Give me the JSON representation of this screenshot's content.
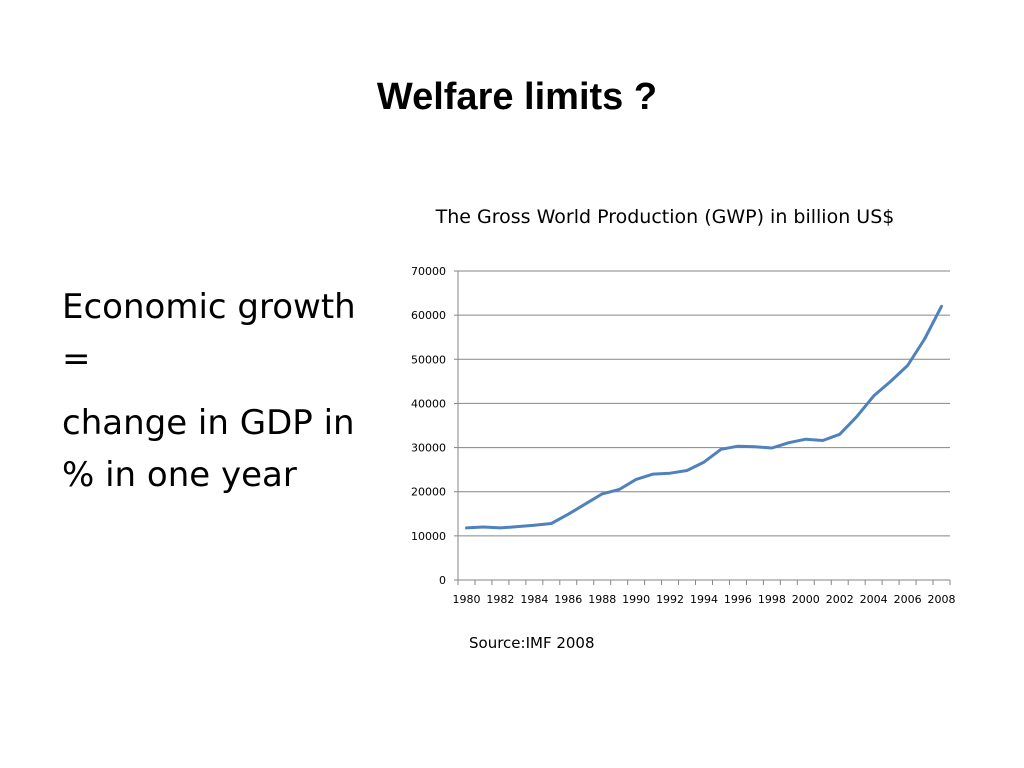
{
  "slide": {
    "title": "Welfare limits ?",
    "body": [
      "Economic growth =",
      "change in GDP in % in one year"
    ]
  },
  "chart_data": {
    "type": "line",
    "title": "The Gross World Production (GWP) in billion US$",
    "source": "Source:IMF 2008",
    "x": [
      1980,
      1981,
      1982,
      1983,
      1984,
      1985,
      1986,
      1987,
      1988,
      1989,
      1990,
      1991,
      1992,
      1993,
      1994,
      1995,
      1996,
      1997,
      1998,
      1999,
      2000,
      2001,
      2002,
      2003,
      2004,
      2005,
      2006,
      2007,
      2008
    ],
    "series": [
      {
        "values": [
          11800,
          12000,
          11800,
          12100,
          12400,
          12800,
          14900,
          17200,
          19500,
          20500,
          22800,
          24000,
          24200,
          24800,
          26700,
          29600,
          30300,
          30200,
          29900,
          31100,
          31900,
          31600,
          33000,
          37000,
          41700,
          45000,
          48600,
          54600,
          62000
        ],
        "color": "#4f81bd"
      }
    ],
    "xticks": [
      "1980",
      "1982",
      "1984",
      "1986",
      "1988",
      "1990",
      "1992",
      "1994",
      "1996",
      "1998",
      "2000",
      "2002",
      "2004",
      "2006",
      "2008"
    ],
    "yticks": [
      "0",
      "10000",
      "20000",
      "30000",
      "40000",
      "50000",
      "60000",
      "70000"
    ],
    "ylim": [
      0,
      70000
    ],
    "xlim": [
      1980,
      2008
    ],
    "grid": "horizontal",
    "legend": "none"
  }
}
